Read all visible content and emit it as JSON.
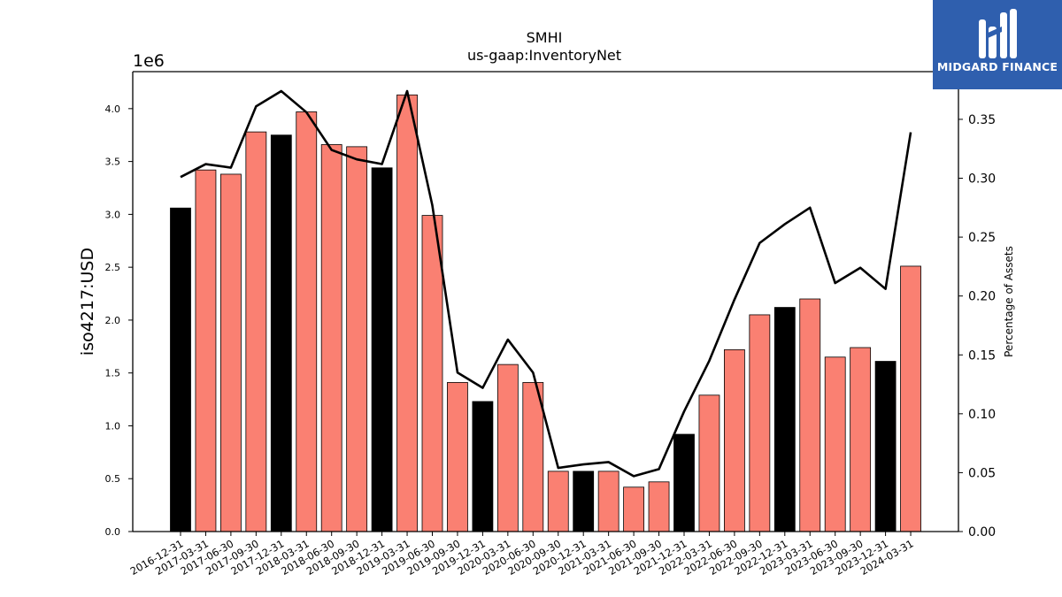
{
  "chart_data": {
    "type": "bar",
    "title": "SMHI",
    "subtitle": "us-gaap:InventoryNet",
    "ylabel": "iso4217:USD",
    "y2label": "Percentage of Assets",
    "y_offset_label": "1e6",
    "ylim": [
      0,
      4350000
    ],
    "y2lim": [
      0,
      0.3905
    ],
    "yticks": [
      "0.0",
      "0.5",
      "1.0",
      "1.5",
      "2.0",
      "2.5",
      "3.0",
      "3.5",
      "4.0"
    ],
    "y2ticks": [
      "0.00",
      "0.05",
      "0.10",
      "0.15",
      "0.20",
      "0.25",
      "0.30",
      "0.35"
    ],
    "categories": [
      "2016-12-31",
      "2017-03-31",
      "2017-06-30",
      "2017-09-30",
      "2017-12-31",
      "2018-03-31",
      "2018-06-30",
      "2018-09-30",
      "2018-12-31",
      "2019-03-31",
      "2019-06-30",
      "2019-09-30",
      "2019-12-31",
      "2020-03-31",
      "2020-06-30",
      "2020-09-30",
      "2020-12-31",
      "2021-03-31",
      "2021-06-30",
      "2021-09-30",
      "2021-12-31",
      "2022-03-31",
      "2022-06-30",
      "2022-09-30",
      "2022-12-31",
      "2023-03-31",
      "2023-06-30",
      "2023-09-30",
      "2023-12-31",
      "2024-03-31"
    ],
    "values": [
      3060000,
      3420000,
      3380000,
      3780000,
      3750000,
      3970000,
      3660000,
      3640000,
      3440000,
      4130000,
      2990000,
      1410000,
      1230000,
      1580000,
      1410000,
      570000,
      570000,
      570000,
      420000,
      470000,
      920000,
      1290000,
      1720000,
      2050000,
      2120000,
      2200000,
      1650000,
      1740000,
      1610000,
      2510000
    ],
    "bar_colors": [
      "#000000",
      "#fa8072",
      "#fa8072",
      "#fa8072",
      "#000000",
      "#fa8072",
      "#fa8072",
      "#fa8072",
      "#000000",
      "#fa8072",
      "#fa8072",
      "#fa8072",
      "#000000",
      "#fa8072",
      "#fa8072",
      "#fa8072",
      "#000000",
      "#fa8072",
      "#fa8072",
      "#fa8072",
      "#000000",
      "#fa8072",
      "#fa8072",
      "#fa8072",
      "#000000",
      "#fa8072",
      "#fa8072",
      "#fa8072",
      "#000000",
      "#fa8072"
    ],
    "line_values": [
      0.301,
      0.312,
      0.309,
      0.361,
      0.374,
      0.356,
      0.324,
      0.316,
      0.312,
      0.374,
      0.277,
      0.135,
      0.122,
      0.163,
      0.135,
      0.054,
      0.057,
      0.059,
      0.047,
      0.053,
      0.102,
      0.145,
      0.197,
      0.245,
      0.261,
      0.275,
      0.211,
      0.224,
      0.206,
      0.339
    ],
    "line_color": "#000000",
    "grid": false,
    "legend": "none"
  },
  "logo": {
    "text": "MIDGARD FINANCE",
    "color": "#2f5fae"
  }
}
